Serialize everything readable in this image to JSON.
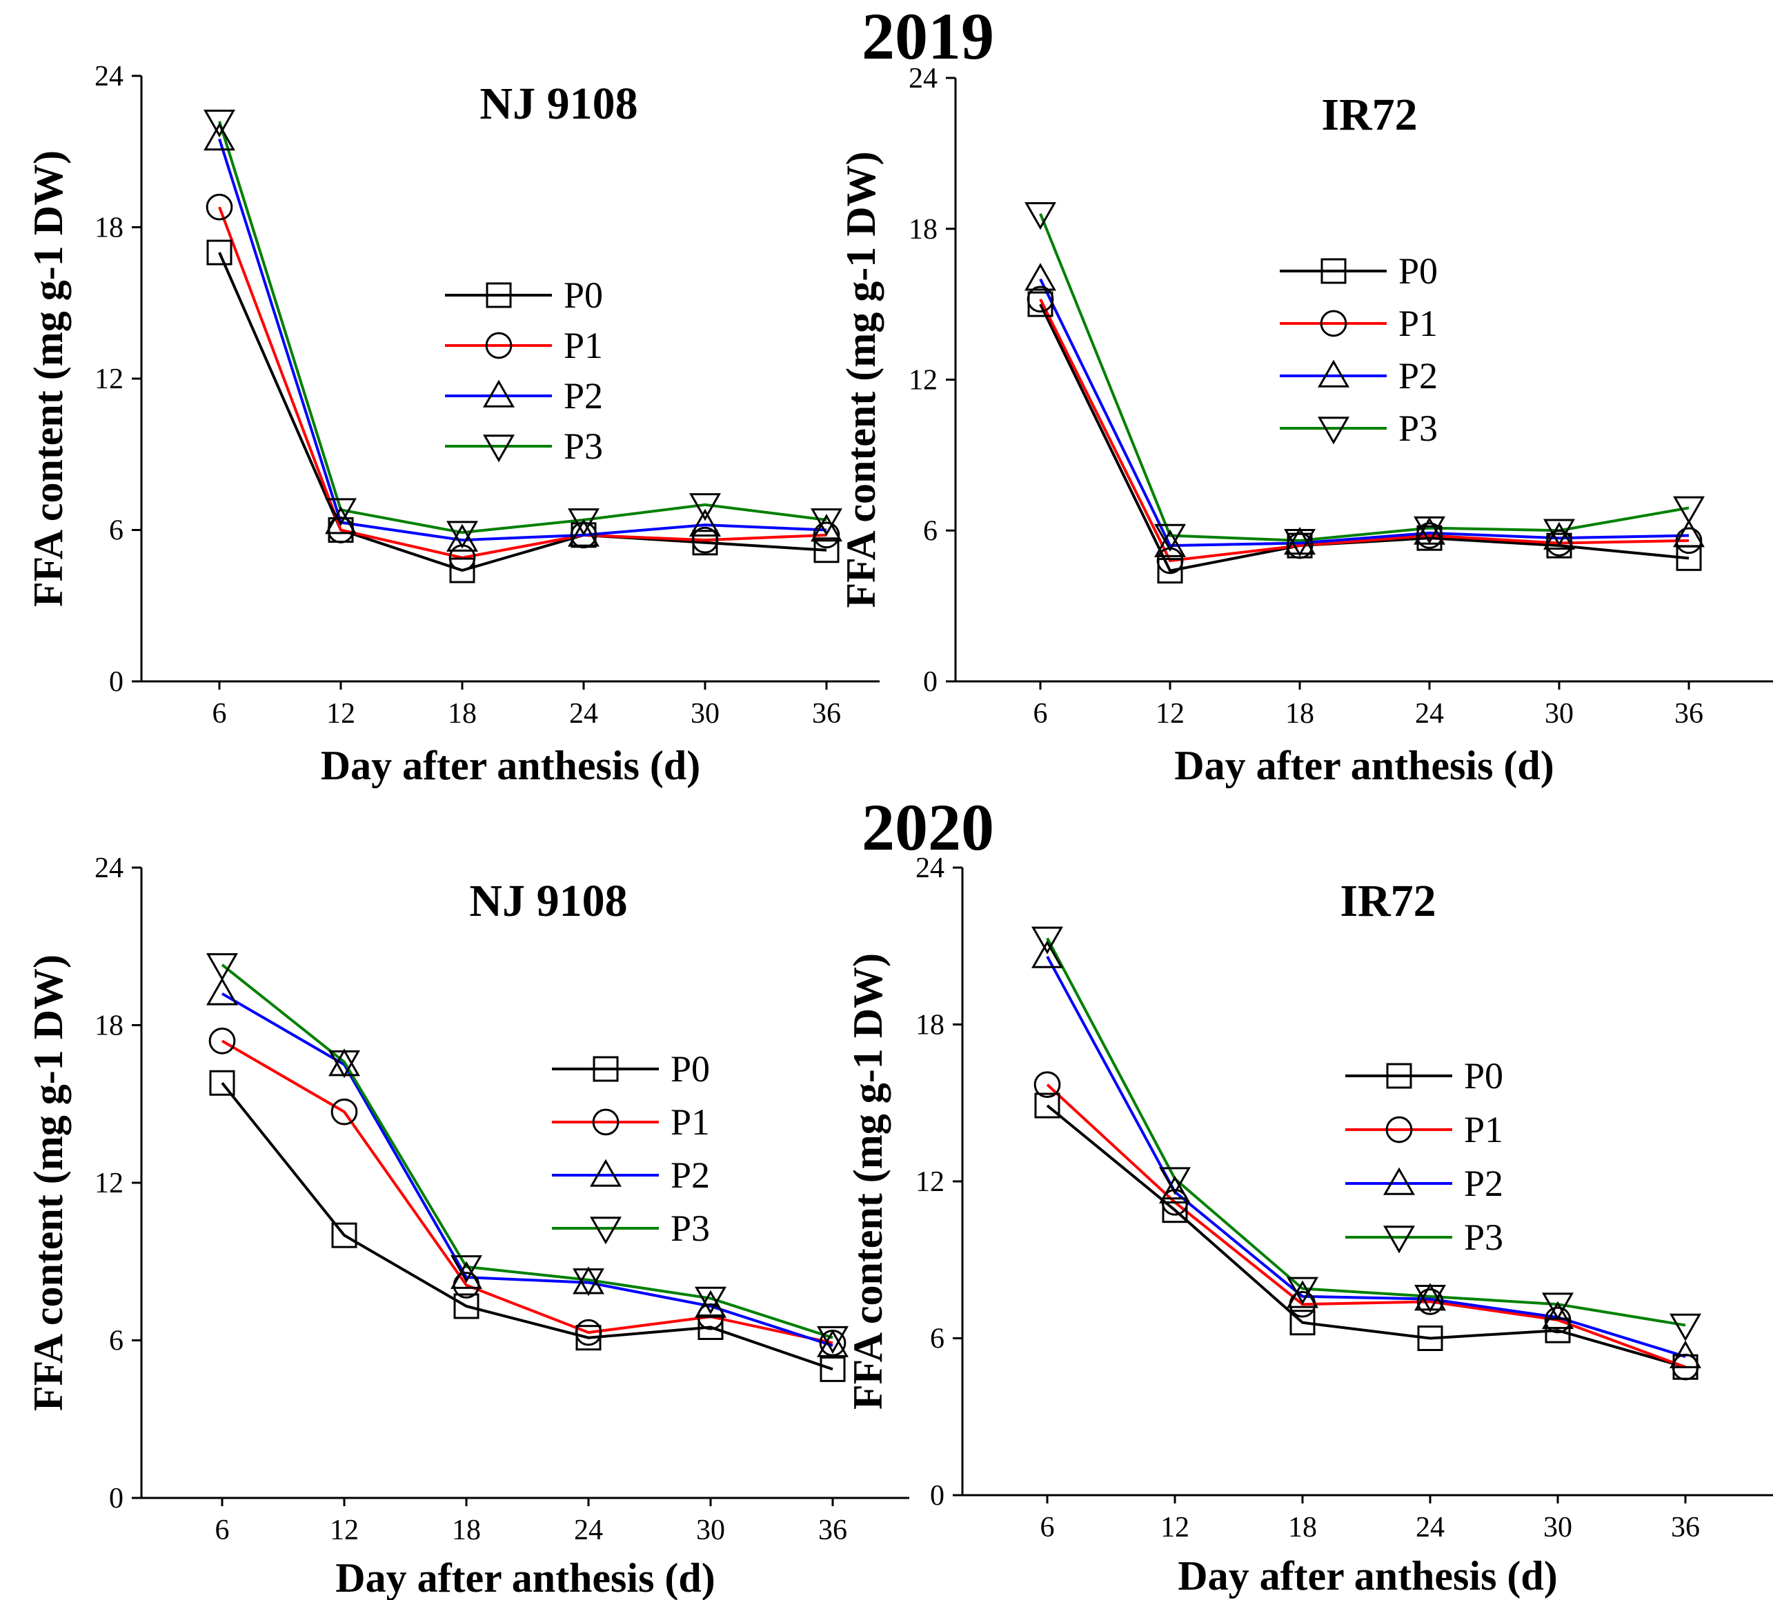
{
  "figure_titles": [
    "2019",
    "2020"
  ],
  "series_colors": {
    "P0": "#000000",
    "P1": "#ff0000",
    "P2": "#0000ff",
    "P3": "#008000"
  },
  "chart_data": [
    {
      "type": "line",
      "year": "2019",
      "title": "NJ 9108",
      "xlabel": "Day after anthesis (d)",
      "ylabel": "FFA content (mg g-1 DW)",
      "x": [
        6,
        12,
        18,
        24,
        30,
        36
      ],
      "xticks": [
        "6",
        "12",
        "18",
        "24",
        "30",
        "36"
      ],
      "yticks": [
        "0",
        "6",
        "12",
        "18",
        "24"
      ],
      "ylim": [
        0,
        24
      ],
      "legend": [
        "P0",
        "P1",
        "P2",
        "P3"
      ],
      "series": [
        {
          "name": "P0",
          "values": [
            17.0,
            6.0,
            4.4,
            5.8,
            5.5,
            5.2
          ]
        },
        {
          "name": "P1",
          "values": [
            18.8,
            6.0,
            4.9,
            5.8,
            5.6,
            5.8
          ]
        },
        {
          "name": "P2",
          "values": [
            21.5,
            6.3,
            5.6,
            5.8,
            6.2,
            6.0
          ]
        },
        {
          "name": "P3",
          "values": [
            22.2,
            6.8,
            5.9,
            6.4,
            7.0,
            6.4
          ]
        }
      ]
    },
    {
      "type": "line",
      "year": "2019",
      "title": "IR72",
      "xlabel": "Day after anthesis (d)",
      "ylabel": "FFA content (mg g-1 DW)",
      "x": [
        6,
        12,
        18,
        24,
        30,
        36
      ],
      "xticks": [
        "6",
        "12",
        "18",
        "24",
        "30",
        "36"
      ],
      "yticks": [
        "0",
        "6",
        "12",
        "18",
        "24"
      ],
      "ylim": [
        0,
        24
      ],
      "legend": [
        "P0",
        "P1",
        "P2",
        "P3"
      ],
      "series": [
        {
          "name": "P0",
          "values": [
            15.0,
            4.4,
            5.4,
            5.7,
            5.4,
            4.9
          ]
        },
        {
          "name": "P1",
          "values": [
            15.2,
            4.8,
            5.4,
            5.8,
            5.5,
            5.6
          ]
        },
        {
          "name": "P2",
          "values": [
            16.0,
            5.4,
            5.5,
            5.9,
            5.7,
            5.8
          ]
        },
        {
          "name": "P3",
          "values": [
            18.6,
            5.8,
            5.6,
            6.1,
            6.0,
            6.9
          ]
        }
      ]
    },
    {
      "type": "line",
      "year": "2020",
      "title": "NJ 9108",
      "xlabel": "Day after anthesis (d)",
      "ylabel": "FFA content (mg g-1 DW)",
      "x": [
        6,
        12,
        18,
        24,
        30,
        36
      ],
      "xticks": [
        "6",
        "12",
        "18",
        "24",
        "30",
        "36"
      ],
      "yticks": [
        "0",
        "6",
        "12",
        "18",
        "24"
      ],
      "ylim": [
        0,
        24
      ],
      "legend": [
        "P0",
        "P1",
        "P2",
        "P3"
      ],
      "series": [
        {
          "name": "P0",
          "values": [
            15.8,
            10.0,
            7.3,
            6.1,
            6.5,
            4.9
          ]
        },
        {
          "name": "P1",
          "values": [
            17.4,
            14.7,
            8.1,
            6.3,
            6.9,
            5.9
          ]
        },
        {
          "name": "P2",
          "values": [
            19.2,
            16.5,
            8.4,
            8.2,
            7.3,
            5.8
          ]
        },
        {
          "name": "P3",
          "values": [
            20.3,
            16.6,
            8.8,
            8.3,
            7.6,
            6.1
          ]
        }
      ]
    },
    {
      "type": "line",
      "year": "2020",
      "title": "IR72",
      "xlabel": "Day after anthesis (d)",
      "ylabel": "FFA content (mg g-1 DW)",
      "x": [
        6,
        12,
        18,
        24,
        30,
        36
      ],
      "xticks": [
        "6",
        "12",
        "18",
        "24",
        "30",
        "36"
      ],
      "yticks": [
        "0",
        "6",
        "12",
        "18",
        "24"
      ],
      "ylim": [
        0,
        24
      ],
      "legend": [
        "P0",
        "P1",
        "P2",
        "P3"
      ],
      "series": [
        {
          "name": "P0",
          "values": [
            14.9,
            10.9,
            6.6,
            6.0,
            6.3,
            4.9
          ]
        },
        {
          "name": "P1",
          "values": [
            15.7,
            11.2,
            7.3,
            7.4,
            6.7,
            4.9
          ]
        },
        {
          "name": "P2",
          "values": [
            20.6,
            11.6,
            7.6,
            7.5,
            6.8,
            5.3
          ]
        },
        {
          "name": "P3",
          "values": [
            21.3,
            12.1,
            7.9,
            7.6,
            7.3,
            6.5
          ]
        }
      ]
    }
  ]
}
